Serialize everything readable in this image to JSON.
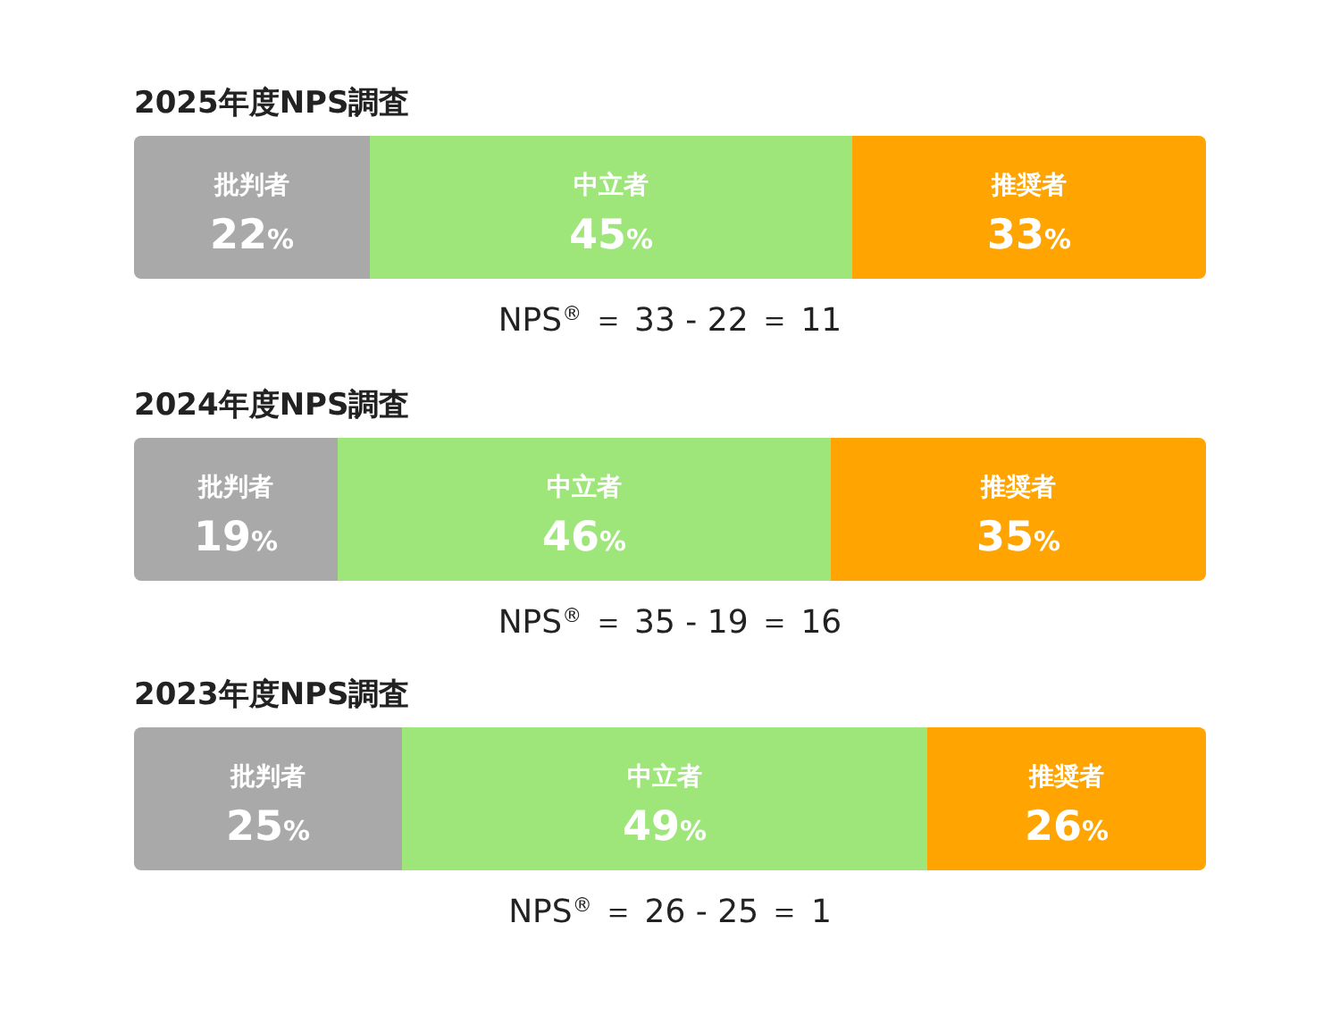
{
  "chart_data": [
    {
      "type": "bar",
      "title": "2025年度NPS調査",
      "orientation": "horizontal",
      "stacked": true,
      "categories": [
        null
      ],
      "xlim": [
        0,
        100
      ],
      "annotations": [
        "NPS$^{®}$ ＝ 33 - 22 ＝ 11"
      ],
      "series": [
        {
          "name": "批判者",
          "color": "#a9a9a9",
          "values": [
            22
          ],
          "value_labels": [
            "22%"
          ]
        },
        {
          "name": "中立者",
          "color": "#9ee67a",
          "values": [
            45
          ],
          "value_labels": [
            "45%"
          ]
        },
        {
          "name": "推奨者",
          "color": "#ffa400",
          "values": [
            33
          ],
          "value_labels": [
            "33%"
          ]
        }
      ]
    },
    {
      "type": "bar",
      "title": "2024年度NPS調査",
      "orientation": "horizontal",
      "stacked": true,
      "categories": [
        null
      ],
      "xlim": [
        0,
        100
      ],
      "annotations": [
        "NPS$^{®}$ ＝ 35 - 19 ＝ 16"
      ],
      "series": [
        {
          "name": "批判者",
          "color": "#a9a9a9",
          "values": [
            19
          ],
          "value_labels": [
            "19%"
          ]
        },
        {
          "name": "中立者",
          "color": "#9ee67a",
          "values": [
            46
          ],
          "value_labels": [
            "46%"
          ]
        },
        {
          "name": "推奨者",
          "color": "#ffa400",
          "values": [
            35
          ],
          "value_labels": [
            "35%"
          ]
        }
      ]
    },
    {
      "type": "bar",
      "title": "2023年度NPS調査",
      "orientation": "horizontal",
      "stacked": true,
      "categories": [
        null
      ],
      "xlim": [
        0,
        100
      ],
      "annotations": [
        "NPS$^{®}$ ＝ 26 - 25 ＝ 1"
      ],
      "series": [
        {
          "name": "批判者",
          "color": "#a9a9a9",
          "values": [
            25
          ],
          "value_labels": [
            "25%"
          ]
        },
        {
          "name": "中立者",
          "color": "#9ee67a",
          "values": [
            49
          ],
          "value_labels": [
            "49%"
          ]
        },
        {
          "name": "推奨者",
          "color": "#ffa400",
          "values": [
            26
          ],
          "value_labels": [
            "26%"
          ]
        }
      ]
    }
  ]
}
